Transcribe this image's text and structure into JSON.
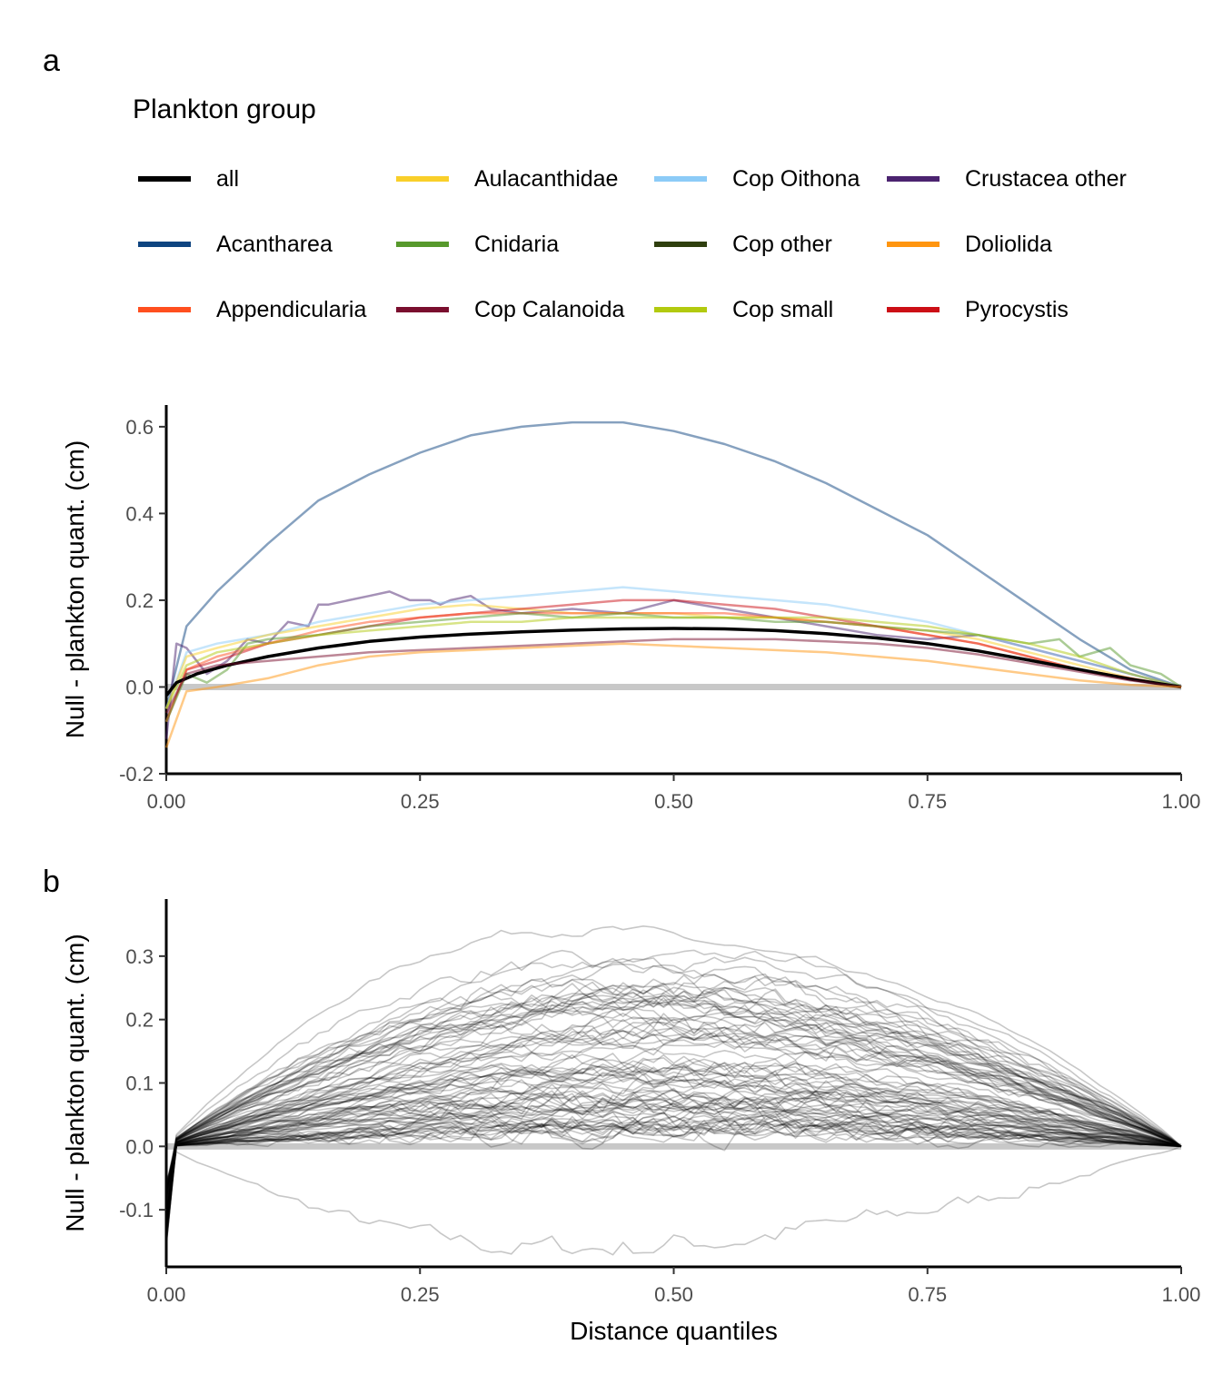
{
  "panels": {
    "a": "a",
    "b": "b"
  },
  "legend": {
    "title": "Plankton group",
    "items": [
      {
        "label": "all",
        "color": "#000000"
      },
      {
        "label": "Acantharea",
        "color": "#0E4480"
      },
      {
        "label": "Appendicularia",
        "color": "#FF4F1F"
      },
      {
        "label": "Aulacanthidae",
        "color": "#F9CF2A"
      },
      {
        "label": "Cnidaria",
        "color": "#57992C"
      },
      {
        "label": "Cop Calanoida",
        "color": "#7A0E2E"
      },
      {
        "label": "Cop Oithona",
        "color": "#8CCBF7"
      },
      {
        "label": "Cop other",
        "color": "#2F3F0E"
      },
      {
        "label": "Cop small",
        "color": "#B2CA0F"
      },
      {
        "label": "Crustacea other",
        "color": "#4B2370"
      },
      {
        "label": "Doliolida",
        "color": "#FF950F"
      },
      {
        "label": "Pyrocystis",
        "color": "#CC0F16"
      }
    ]
  },
  "chart_data": [
    {
      "type": "line",
      "panel": "a",
      "xlabel": "",
      "ylabel": "Null - plankton quant. (cm)",
      "xlim": [
        0,
        1
      ],
      "ylim": [
        -0.2,
        0.65
      ],
      "xticks": [
        "0.00",
        "0.25",
        "0.50",
        "0.75",
        "1.00"
      ],
      "yticks": [
        "-0.2",
        "0.0",
        "0.2",
        "0.4",
        "0.6"
      ],
      "reference_line_y": 0,
      "series": [
        {
          "name": "Acantharea",
          "color": "#0E4480",
          "x": [
            0,
            0.02,
            0.05,
            0.1,
            0.15,
            0.2,
            0.25,
            0.3,
            0.35,
            0.4,
            0.45,
            0.5,
            0.55,
            0.6,
            0.65,
            0.7,
            0.75,
            0.8,
            0.85,
            0.9,
            0.95,
            1.0
          ],
          "y": [
            -0.05,
            0.14,
            0.22,
            0.33,
            0.43,
            0.49,
            0.54,
            0.58,
            0.6,
            0.61,
            0.61,
            0.59,
            0.56,
            0.52,
            0.47,
            0.41,
            0.35,
            0.27,
            0.19,
            0.11,
            0.04,
            0.0
          ]
        },
        {
          "name": "Crustacea other",
          "color": "#4B2370",
          "x": [
            0,
            0.01,
            0.02,
            0.04,
            0.06,
            0.08,
            0.1,
            0.12,
            0.14,
            0.15,
            0.16,
            0.18,
            0.2,
            0.22,
            0.24,
            0.26,
            0.27,
            0.28,
            0.3,
            0.32,
            0.35,
            0.4,
            0.45,
            0.5,
            0.55,
            0.6,
            0.65,
            0.7,
            0.75,
            0.8,
            0.85,
            0.9,
            0.95,
            1.0
          ],
          "y": [
            -0.12,
            0.1,
            0.09,
            0.03,
            0.06,
            0.11,
            0.1,
            0.15,
            0.14,
            0.19,
            0.19,
            0.2,
            0.21,
            0.22,
            0.2,
            0.2,
            0.19,
            0.2,
            0.21,
            0.18,
            0.17,
            0.18,
            0.17,
            0.2,
            0.18,
            0.16,
            0.14,
            0.12,
            0.11,
            0.12,
            0.09,
            0.06,
            0.03,
            0.0
          ]
        },
        {
          "name": "Cop Oithona",
          "color": "#8CCBF7",
          "x": [
            0,
            0.02,
            0.05,
            0.1,
            0.15,
            0.2,
            0.25,
            0.3,
            0.35,
            0.4,
            0.45,
            0.5,
            0.55,
            0.6,
            0.65,
            0.7,
            0.75,
            0.8,
            0.85,
            0.9,
            0.95,
            1.0
          ],
          "y": [
            -0.05,
            0.08,
            0.1,
            0.12,
            0.15,
            0.17,
            0.19,
            0.2,
            0.21,
            0.22,
            0.23,
            0.22,
            0.21,
            0.2,
            0.19,
            0.17,
            0.15,
            0.12,
            0.09,
            0.06,
            0.03,
            0.0
          ]
        },
        {
          "name": "Aulacanthidae",
          "color": "#F9CF2A",
          "x": [
            0,
            0.02,
            0.05,
            0.1,
            0.15,
            0.2,
            0.25,
            0.3,
            0.35,
            0.4,
            0.45,
            0.5,
            0.55,
            0.6,
            0.65,
            0.7,
            0.75,
            0.8,
            0.85,
            0.9,
            0.95,
            1.0
          ],
          "y": [
            -0.05,
            0.07,
            0.09,
            0.12,
            0.14,
            0.16,
            0.18,
            0.19,
            0.18,
            0.17,
            0.17,
            0.17,
            0.16,
            0.16,
            0.15,
            0.14,
            0.13,
            0.11,
            0.08,
            0.05,
            0.02,
            0.0
          ]
        },
        {
          "name": "Pyrocystis",
          "color": "#CC0F16",
          "x": [
            0,
            0.02,
            0.05,
            0.1,
            0.15,
            0.2,
            0.25,
            0.3,
            0.35,
            0.4,
            0.45,
            0.5,
            0.55,
            0.6,
            0.65,
            0.7,
            0.75,
            0.8,
            0.85,
            0.9,
            0.95,
            1.0
          ],
          "y": [
            -0.08,
            0.04,
            0.06,
            0.1,
            0.12,
            0.14,
            0.16,
            0.17,
            0.18,
            0.19,
            0.2,
            0.2,
            0.19,
            0.18,
            0.16,
            0.14,
            0.12,
            0.1,
            0.07,
            0.04,
            0.02,
            0.0
          ]
        },
        {
          "name": "Appendicularia",
          "color": "#FF4F1F",
          "x": [
            0,
            0.02,
            0.05,
            0.1,
            0.15,
            0.2,
            0.25,
            0.3,
            0.35,
            0.4,
            0.45,
            0.5,
            0.55,
            0.6,
            0.65,
            0.7,
            0.75,
            0.8,
            0.85,
            0.9,
            0.95,
            1.0
          ],
          "y": [
            -0.08,
            0.04,
            0.07,
            0.1,
            0.13,
            0.15,
            0.16,
            0.17,
            0.17,
            0.17,
            0.17,
            0.17,
            0.17,
            0.16,
            0.15,
            0.14,
            0.12,
            0.1,
            0.07,
            0.04,
            0.02,
            0.0
          ]
        },
        {
          "name": "Cnidaria",
          "color": "#57992C",
          "x": [
            0,
            0.02,
            0.04,
            0.06,
            0.08,
            0.1,
            0.15,
            0.2,
            0.25,
            0.3,
            0.35,
            0.4,
            0.45,
            0.5,
            0.55,
            0.6,
            0.65,
            0.7,
            0.75,
            0.8,
            0.85,
            0.88,
            0.9,
            0.93,
            0.95,
            0.98,
            1.0
          ],
          "y": [
            -0.08,
            0.03,
            0.01,
            0.04,
            0.1,
            0.11,
            0.12,
            0.14,
            0.15,
            0.16,
            0.17,
            0.16,
            0.17,
            0.16,
            0.16,
            0.15,
            0.15,
            0.14,
            0.13,
            0.12,
            0.1,
            0.11,
            0.07,
            0.09,
            0.05,
            0.03,
            0.0
          ]
        },
        {
          "name": "Cop small",
          "color": "#B2CA0F",
          "x": [
            0,
            0.02,
            0.05,
            0.1,
            0.15,
            0.2,
            0.25,
            0.3,
            0.35,
            0.4,
            0.45,
            0.5,
            0.55,
            0.6,
            0.65,
            0.7,
            0.75,
            0.8,
            0.85,
            0.9,
            0.95,
            1.0
          ],
          "y": [
            -0.05,
            0.05,
            0.08,
            0.1,
            0.12,
            0.13,
            0.14,
            0.15,
            0.15,
            0.16,
            0.16,
            0.16,
            0.16,
            0.16,
            0.16,
            0.15,
            0.14,
            0.12,
            0.1,
            0.07,
            0.03,
            0.0
          ]
        },
        {
          "name": "all",
          "color": "#000000",
          "x": [
            0,
            0.01,
            0.03,
            0.06,
            0.1,
            0.15,
            0.2,
            0.25,
            0.3,
            0.35,
            0.4,
            0.45,
            0.5,
            0.55,
            0.6,
            0.65,
            0.7,
            0.75,
            0.8,
            0.85,
            0.9,
            0.95,
            1.0
          ],
          "y": [
            -0.02,
            0.01,
            0.03,
            0.05,
            0.07,
            0.09,
            0.105,
            0.115,
            0.122,
            0.127,
            0.131,
            0.134,
            0.135,
            0.134,
            0.13,
            0.123,
            0.113,
            0.1,
            0.083,
            0.062,
            0.04,
            0.018,
            0.0
          ]
        },
        {
          "name": "Cop Calanoida",
          "color": "#7A0E2E",
          "x": [
            0,
            0.02,
            0.05,
            0.1,
            0.15,
            0.2,
            0.25,
            0.3,
            0.35,
            0.4,
            0.45,
            0.5,
            0.55,
            0.6,
            0.65,
            0.7,
            0.75,
            0.8,
            0.85,
            0.9,
            0.95,
            1.0
          ],
          "y": [
            -0.06,
            0.03,
            0.05,
            0.06,
            0.07,
            0.08,
            0.085,
            0.09,
            0.095,
            0.1,
            0.105,
            0.11,
            0.11,
            0.11,
            0.105,
            0.1,
            0.09,
            0.075,
            0.055,
            0.035,
            0.015,
            0.0
          ]
        },
        {
          "name": "Doliolida",
          "color": "#FF950F",
          "x": [
            0,
            0.02,
            0.05,
            0.1,
            0.15,
            0.2,
            0.25,
            0.3,
            0.35,
            0.4,
            0.45,
            0.5,
            0.55,
            0.6,
            0.65,
            0.7,
            0.75,
            0.8,
            0.85,
            0.9,
            0.95,
            1.0
          ],
          "y": [
            -0.14,
            -0.01,
            0.0,
            0.02,
            0.05,
            0.07,
            0.08,
            0.085,
            0.09,
            0.095,
            0.1,
            0.095,
            0.09,
            0.085,
            0.08,
            0.07,
            0.06,
            0.045,
            0.03,
            0.015,
            0.005,
            0.0
          ]
        }
      ]
    },
    {
      "type": "line",
      "panel": "b",
      "xlabel": "Distance quantiles",
      "ylabel": "Null - plankton quant. (cm)",
      "xlim": [
        0,
        1
      ],
      "ylim": [
        -0.19,
        0.39
      ],
      "xticks": [
        "0.00",
        "0.25",
        "0.50",
        "0.75",
        "1.00"
      ],
      "yticks": [
        "-0.1",
        "0.0",
        "0.1",
        "0.2",
        "0.3"
      ],
      "reference_line_y": 0,
      "line_color": "#000000",
      "line_opacity": 0.22,
      "envelope": {
        "x": [
          0,
          0.25,
          0.5,
          0.75,
          1.0
        ],
        "peak_max": 0.35,
        "peak_typical": 0.12,
        "min_negative": -0.16
      },
      "n_lines": 90
    }
  ]
}
